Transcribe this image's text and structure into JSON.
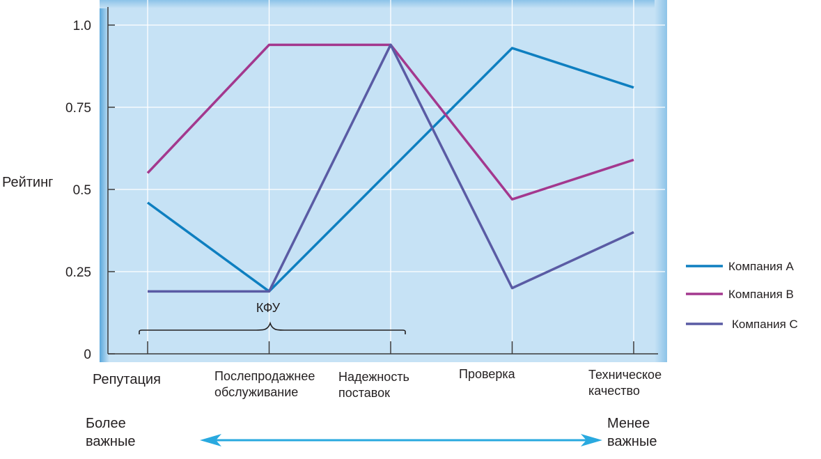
{
  "chart_data": {
    "type": "line",
    "ylabel": "Рейтинг",
    "ylim": [
      0,
      1.0
    ],
    "yticks": [
      "0",
      "0.25",
      "0.5",
      "0.75",
      "1.0"
    ],
    "categories": [
      [
        "Репутация"
      ],
      [
        "Послепродажнее",
        "обслуживание"
      ],
      [
        "Надежность",
        "поставок"
      ],
      [
        "Проверка"
      ],
      [
        "Техническое",
        "качество"
      ]
    ],
    "series": [
      {
        "name": "Компания А",
        "color": "#0e7fc0",
        "values": [
          0.46,
          0.19,
          0.56,
          0.93,
          0.81
        ]
      },
      {
        "name": "Компания В",
        "color": "#a3388e",
        "values": [
          0.55,
          0.94,
          0.94,
          0.47,
          0.59
        ]
      },
      {
        "name": "Компания С",
        "color": "#5a5ba4",
        "values": [
          0.19,
          0.19,
          0.94,
          0.2,
          0.37
        ]
      }
    ],
    "grid": true,
    "legend_position": "right",
    "annotation": "КФУ",
    "importance": {
      "left": [
        "Более",
        "важные"
      ],
      "right": [
        "Менее",
        "важные"
      ]
    },
    "colors": {
      "plot_bg": "#c6e2f5",
      "frame": "#80bde5",
      "arrow": "#29a9df"
    }
  }
}
